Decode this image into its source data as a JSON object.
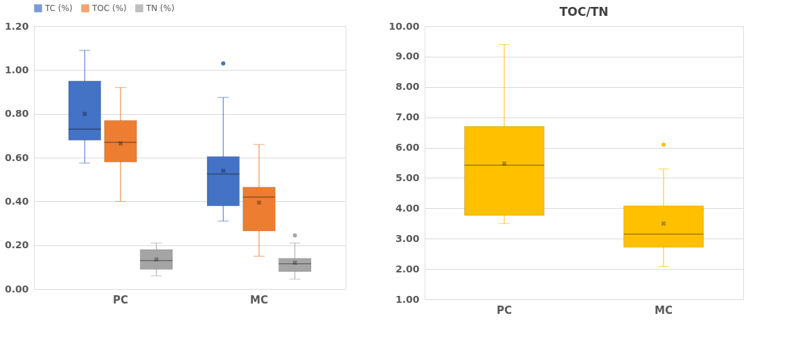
{
  "chart_data": [
    {
      "type": "box",
      "categories": [
        "PC",
        "MC"
      ],
      "ylim": [
        0,
        1.2
      ],
      "yticks": [
        {
          "value": 0,
          "label": "0.00"
        },
        {
          "value": 0.2,
          "label": "0.20"
        },
        {
          "value": 0.4,
          "label": "0.40"
        },
        {
          "value": 0.6,
          "label": "0.60"
        },
        {
          "value": 0.8,
          "label": "0.80"
        },
        {
          "value": 1.0,
          "label": "1.00"
        },
        {
          "value": 1.2,
          "label": "1.20"
        }
      ],
      "grid": "y",
      "legend": "top",
      "series": [
        {
          "name": "TC (%)",
          "color": "#4472c4",
          "boxes": [
            {
              "low": 0.575,
              "q1": 0.68,
              "median": 0.73,
              "q3": 0.95,
              "high": 1.09,
              "mean": 0.8
            },
            {
              "low": 0.31,
              "q1": 0.38,
              "median": 0.525,
              "q3": 0.605,
              "high": 0.875,
              "mean": 0.54,
              "outliers": [
                1.03
              ]
            }
          ]
        },
        {
          "name": "TOC (%)",
          "color": "#ed7d31",
          "boxes": [
            {
              "low": 0.4,
              "q1": 0.58,
              "median": 0.67,
              "q3": 0.77,
              "high": 0.92,
              "mean": 0.665
            },
            {
              "low": 0.15,
              "q1": 0.265,
              "median": 0.42,
              "q3": 0.465,
              "high": 0.66,
              "mean": 0.395
            }
          ]
        },
        {
          "name": "TN (%)",
          "color": "#a5a5a5",
          "boxes": [
            {
              "low": 0.06,
              "q1": 0.09,
              "median": 0.13,
              "q3": 0.18,
              "high": 0.21,
              "mean": 0.135
            },
            {
              "low": 0.045,
              "q1": 0.08,
              "median": 0.115,
              "q3": 0.14,
              "high": 0.21,
              "mean": 0.12,
              "outliers": [
                0.245
              ]
            }
          ]
        }
      ]
    },
    {
      "type": "box",
      "title": "TOC/TN",
      "categories": [
        "PC",
        "MC"
      ],
      "ylim": [
        1,
        10
      ],
      "yticks": [
        {
          "value": 1,
          "label": "1.00"
        },
        {
          "value": 2,
          "label": "2.00"
        },
        {
          "value": 3,
          "label": "3.00"
        },
        {
          "value": 4,
          "label": "4.00"
        },
        {
          "value": 5,
          "label": "5.00"
        },
        {
          "value": 6,
          "label": "6.00"
        },
        {
          "value": 7,
          "label": "7.00"
        },
        {
          "value": 8,
          "label": "8.00"
        },
        {
          "value": 9,
          "label": "9.00"
        },
        {
          "value": 10,
          "label": "10.00"
        }
      ],
      "grid": "y",
      "series": [
        {
          "color": "#ffc000",
          "boxes": [
            {
              "low": 3.5,
              "q1": 3.77,
              "median": 5.42,
              "q3": 6.7,
              "high": 9.4,
              "mean": 5.48
            },
            {
              "low": 2.08,
              "q1": 2.72,
              "median": 3.15,
              "q3": 4.08,
              "high": 5.3,
              "mean": 3.5,
              "outliers": [
                6.1
              ]
            }
          ]
        }
      ]
    }
  ]
}
